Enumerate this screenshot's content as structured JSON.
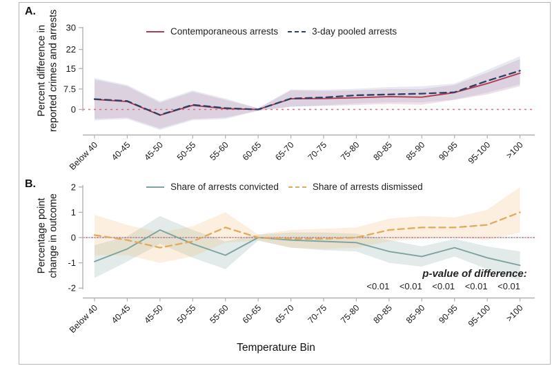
{
  "figure": {
    "panel_a_label": "A.",
    "panel_b_label": "B.",
    "xlabel": "Temperature Bin",
    "background": "#ffffff",
    "axis_color": "#b0b0b0",
    "text_color": "#1a1a1a"
  },
  "chart_data": [
    {
      "id": "panel_a",
      "type": "line",
      "ylabel": "Percent difference in reported crimes and arrests",
      "ylabel_lines": [
        "Percent difference in",
        "reported crimes and arrests"
      ],
      "categories": [
        "Below 40",
        "40-45",
        "45-50",
        "50-55",
        "55-60",
        "60-65",
        "65-70",
        "70-75",
        "75-80",
        "80-85",
        "85-90",
        "90-95",
        "95-100",
        ">100"
      ],
      "yticks": [
        {
          "label": "30",
          "v": 30
        },
        {
          "label": "22",
          "v": 22
        },
        {
          "label": "15",
          "v": 15
        },
        {
          "label": "7.5",
          "v": 7.5
        },
        {
          "label": "0",
          "v": 0
        }
      ],
      "ylim": [
        -8,
        30
      ],
      "zero_line_value": 0,
      "zero_line_colors": [
        "#cf7089"
      ],
      "grid": false,
      "legend_position": "top-center",
      "series": [
        {
          "name": "Contemporaneous arrests",
          "style": "solid",
          "color": "#b23a52",
          "band_color": "rgba(186,118,148,0.22)",
          "values": [
            3.7,
            2.9,
            -2.1,
            1.5,
            0.3,
            0,
            3.9,
            4.0,
            4.3,
            4.7,
            4.5,
            6.2,
            9.5,
            13.3
          ],
          "band_upper": [
            11,
            8.5,
            2.5,
            6.5,
            3.5,
            0.4,
            7,
            6.8,
            7,
            7.5,
            7.5,
            9,
            13.5,
            18.5
          ],
          "band_lower": [
            -3.5,
            -3,
            -7,
            -3.5,
            -3,
            -0.4,
            1,
            1.3,
            1.6,
            2,
            1.7,
            3.5,
            5.5,
            8.5
          ]
        },
        {
          "name": "3-day pooled arrests",
          "style": "dashed",
          "color": "#2d3f63",
          "band_color": "rgba(140,150,190,0.20)",
          "values": [
            3.8,
            3.1,
            -2.0,
            1.7,
            0.5,
            0,
            4.0,
            4.4,
            5.2,
            5.5,
            5.8,
            6.3,
            10.5,
            14.2
          ],
          "band_upper": [
            11.5,
            9,
            3,
            7,
            4,
            0.5,
            7.3,
            7.2,
            7.6,
            8.2,
            8.5,
            9.5,
            14.5,
            19.5
          ],
          "band_lower": [
            -4,
            -3.5,
            -7.5,
            -4,
            -3.5,
            -0.5,
            1,
            1.5,
            2.2,
            2.6,
            2.6,
            3.6,
            6.2,
            9.2
          ]
        }
      ]
    },
    {
      "id": "panel_b",
      "type": "line",
      "ylabel": "Percentage point change in outcome",
      "ylabel_lines": [
        "Percentage point",
        "change in outcome"
      ],
      "categories": [
        "Below 40",
        "40-45",
        "45-50",
        "50-55",
        "55-60",
        "60-65",
        "65-70",
        "70-75",
        "75-80",
        "80-85",
        "85-90",
        "90-95",
        "95-100",
        ">100"
      ],
      "yticks": [
        {
          "label": "2",
          "v": 2
        },
        {
          "label": "1",
          "v": 1
        },
        {
          "label": "0",
          "v": 0
        },
        {
          "label": "-1",
          "v": -1
        },
        {
          "label": "-2",
          "v": -2
        }
      ],
      "ylim": [
        -2,
        2
      ],
      "zero_line_value": 0,
      "zero_line_colors": [
        "#9aa0ad",
        "#cf7089"
      ],
      "grid": false,
      "legend_position": "top-center",
      "series": [
        {
          "name": "Share of arrests convicted",
          "style": "solid",
          "color": "#7da3a0",
          "band_color": "rgba(125,163,160,0.22)",
          "values": [
            -0.95,
            -0.45,
            0.3,
            -0.25,
            -0.7,
            0,
            -0.1,
            -0.15,
            -0.2,
            -0.55,
            -0.75,
            -0.4,
            -0.8,
            -1.1
          ],
          "band_upper": [
            -0.3,
            0.05,
            0.85,
            0.3,
            -0.15,
            0.12,
            0.2,
            0.2,
            0.15,
            -0.1,
            -0.35,
            -0.05,
            -0.35,
            -0.55
          ],
          "band_lower": [
            -1.6,
            -0.95,
            -0.25,
            -0.8,
            -1.25,
            -0.12,
            -0.4,
            -0.5,
            -0.55,
            -1.0,
            -1.15,
            -0.75,
            -1.25,
            -1.7
          ]
        },
        {
          "name": "Share of arrests dismissed",
          "style": "dashed",
          "color": "#e2a95f",
          "band_color": "rgba(240,180,110,0.22)",
          "values": [
            0.1,
            -0.1,
            -0.4,
            -0.15,
            0.4,
            0,
            -0.05,
            -0.05,
            0,
            0.3,
            0.4,
            0.4,
            0.5,
            1.0
          ],
          "band_upper": [
            0.9,
            0.5,
            0.2,
            0.45,
            1.0,
            0.12,
            0.3,
            0.35,
            0.4,
            0.75,
            0.85,
            0.8,
            1.1,
            2.0
          ],
          "band_lower": [
            -0.7,
            -0.7,
            -1.0,
            -0.75,
            -0.2,
            -0.12,
            -0.4,
            -0.45,
            -0.4,
            -0.15,
            -0.05,
            0,
            -0.1,
            0.2
          ]
        }
      ],
      "annotation": {
        "title": "p-value of difference:",
        "labels": [
          "<0.01",
          "<0.01",
          "<0.01",
          "<0.01",
          "<0.01"
        ],
        "first_bin": "80-85"
      }
    }
  ]
}
